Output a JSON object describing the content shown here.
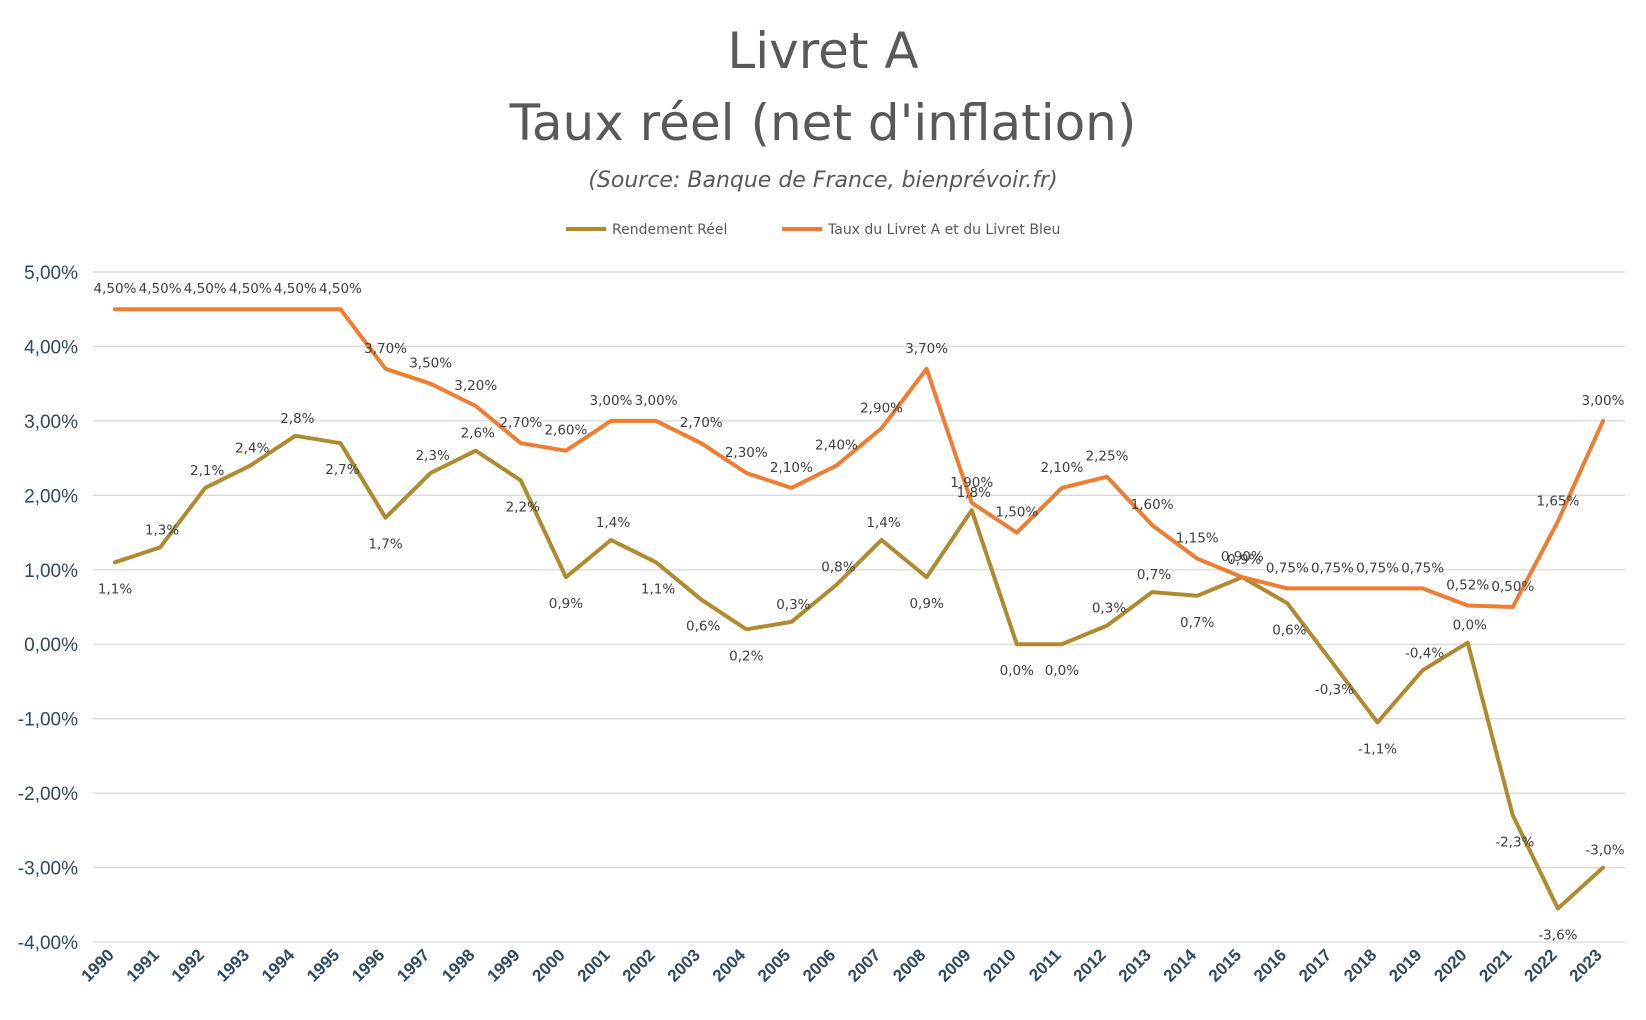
{
  "chart_data": {
    "type": "line",
    "title": "Livret A",
    "title_line2": "Taux réel (net d'inflation)",
    "subtitle": "(Source: Banque de France, bienprévoir.fr)",
    "legend_position": "top",
    "grid": true,
    "ylim": [
      -4,
      5
    ],
    "ytick_labels": [
      "5,00%",
      "4,00%",
      "3,00%",
      "2,00%",
      "1,00%",
      "0,00%",
      "-1,00%",
      "-2,00%",
      "-3,00%",
      "-4,00%"
    ],
    "x": [
      "1990",
      "1991",
      "1992",
      "1993",
      "1994",
      "1995",
      "1996",
      "1997",
      "1998",
      "1999",
      "2000",
      "2001",
      "2002",
      "2003",
      "2004",
      "2005",
      "2006",
      "2007",
      "2008",
      "2009",
      "2010",
      "2011",
      "2012",
      "2013",
      "2014",
      "2015",
      "2016",
      "2017",
      "2018",
      "2019",
      "2020",
      "2021",
      "2022",
      "2023"
    ],
    "series": [
      {
        "name": "Rendement Réel",
        "color": "#b08a2e",
        "values": [
          1.1,
          1.3,
          2.1,
          2.4,
          2.8,
          2.7,
          1.7,
          2.3,
          2.6,
          2.2,
          0.9,
          1.4,
          1.1,
          0.6,
          0.2,
          0.3,
          0.8,
          1.4,
          0.9,
          1.8,
          0.0,
          0.0,
          0.25,
          0.7,
          0.65,
          0.9,
          0.55,
          -0.25,
          -1.05,
          -0.35,
          0.02,
          -2.3,
          -3.55,
          -3.0
        ],
        "labels": [
          "1,1%",
          "1,3%",
          "2,1%",
          "2,4%",
          "2,8%",
          "2,7%",
          "1,7%",
          "2,3%",
          "2,6%",
          "2,2%",
          "0,9%",
          "1,4%",
          "1,1%",
          "0,6%",
          "0,2%",
          "0,3%",
          "0,8%",
          "1,4%",
          "0,9%",
          "1,8%",
          "0,0%",
          "0,0%",
          "0,3%",
          "0,7%",
          "0,7%",
          "0,9%",
          "0,6%",
          "-0,3%",
          "-1,1%",
          "-0,4%",
          "0,0%",
          "-2,3%",
          "-3,6%",
          "-3,0%"
        ]
      },
      {
        "name": "Taux du Livret A et du Livret Bleu",
        "color": "#ed7d31",
        "values": [
          4.5,
          4.5,
          4.5,
          4.5,
          4.5,
          4.5,
          3.7,
          3.5,
          3.2,
          2.7,
          2.6,
          3.0,
          3.0,
          2.7,
          2.3,
          2.1,
          2.4,
          2.9,
          3.7,
          1.9,
          1.5,
          2.1,
          2.25,
          1.6,
          1.15,
          0.9,
          0.75,
          0.75,
          0.75,
          0.75,
          0.52,
          0.5,
          1.65,
          3.0
        ],
        "labels": [
          "4,50%",
          "4,50%",
          "4,50%",
          "4,50%",
          "4,50%",
          "4,50%",
          "3,70%",
          "3,50%",
          "3,20%",
          "2,70%",
          "2,60%",
          "3,00%",
          "3,00%",
          "2,70%",
          "2,30%",
          "2,10%",
          "2,40%",
          "2,90%",
          "3,70%",
          "1,90%",
          "1,50%",
          "2,10%",
          "2,25%",
          "1,60%",
          "1,15%",
          "0,90%",
          "0,75%",
          "0,75%",
          "0,75%",
          "0,75%",
          "0,52%",
          "0,50%",
          "1,65%",
          "3,00%"
        ]
      }
    ]
  }
}
